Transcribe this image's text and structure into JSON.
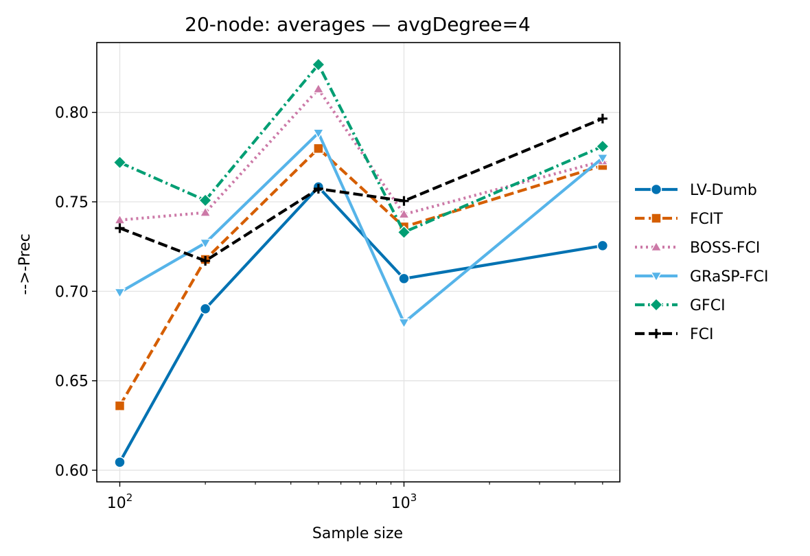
{
  "chart_data": {
    "type": "line",
    "title": "20-node: averages — avgDegree=4",
    "xlabel": "Sample size",
    "ylabel": "-->-Prec",
    "xscale": "log",
    "xlim": [
      83,
      5750
    ],
    "ylim": [
      0.5935,
      0.839
    ],
    "x": [
      100,
      200,
      500,
      1000,
      5000
    ],
    "xticks": [
      {
        "value": 100,
        "base": "10",
        "exp": "2"
      },
      {
        "value": 1000,
        "base": "10",
        "exp": "3"
      }
    ],
    "yticks": [
      0.6,
      0.65,
      0.7,
      0.75,
      0.8
    ],
    "ytick_labels": [
      "0.60",
      "0.65",
      "0.70",
      "0.75",
      "0.80"
    ],
    "grid": true,
    "legend_position": "right",
    "series": [
      {
        "name": "LV-Dumb",
        "color": "#0072B2",
        "dash": "solid",
        "marker": "circle",
        "values": [
          0.6045,
          0.6902,
          0.7583,
          0.7071,
          0.7255
        ]
      },
      {
        "name": "FCIT",
        "color": "#D55E00",
        "dash": "dashed",
        "marker": "square",
        "values": [
          0.636,
          0.7178,
          0.7798,
          0.736,
          0.7703
        ]
      },
      {
        "name": "BOSS-FCI",
        "color": "#CC79A7",
        "dash": "dotted",
        "marker": "triangle-up",
        "values": [
          0.7398,
          0.744,
          0.813,
          0.743,
          0.7728
        ]
      },
      {
        "name": "GRaSP-FCI",
        "color": "#56B4E9",
        "dash": "solid",
        "marker": "triangle-down",
        "values": [
          0.6994,
          0.727,
          0.7885,
          0.6825,
          0.7745
        ]
      },
      {
        "name": "GFCI",
        "color": "#009E73",
        "dash": "dashdot",
        "marker": "diamond",
        "values": [
          0.772,
          0.7508,
          0.8267,
          0.733,
          0.781
        ]
      },
      {
        "name": "FCI",
        "color": "#000000",
        "dash": "dashed",
        "marker": "plus",
        "values": [
          0.7353,
          0.717,
          0.7573,
          0.7505,
          0.7965
        ]
      }
    ]
  }
}
